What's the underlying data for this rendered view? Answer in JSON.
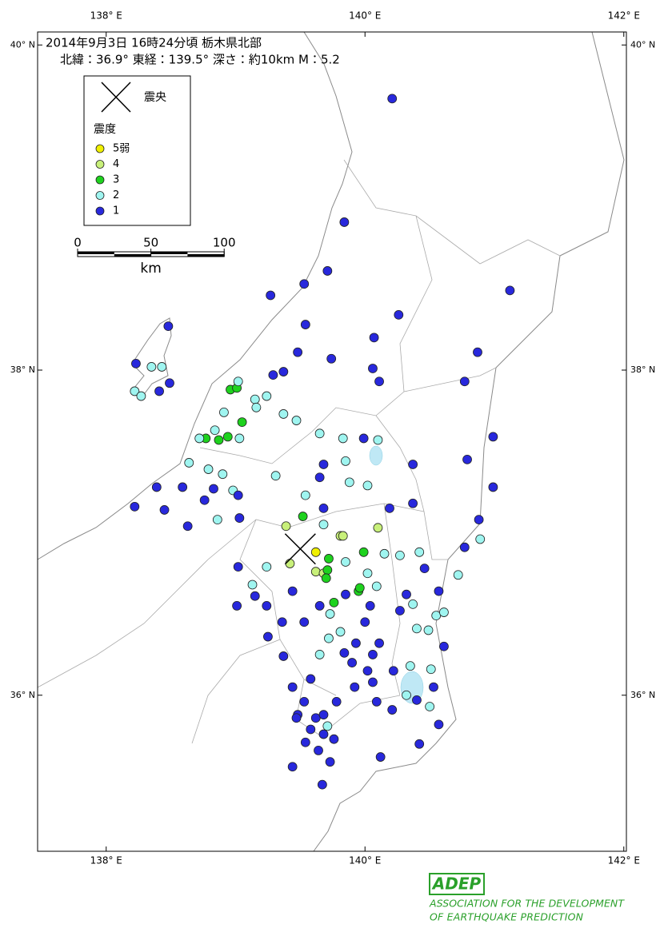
{
  "header": {
    "title": "2014年9月3日 16時24分頃  栃木県北部",
    "info": "北緯：36.9°  東経：139.5°  深さ：約10km  M：5.2"
  },
  "map": {
    "lonlim": [
      137.47,
      142.02
    ],
    "latlim": [
      35.04,
      40.08
    ],
    "lon_ticks": [
      {
        "value": 138,
        "label": "138° E"
      },
      {
        "value": 140,
        "label": "140° E"
      },
      {
        "value": 142,
        "label": "142° E"
      }
    ],
    "lat_ticks": [
      {
        "value": 40,
        "label": "40° N"
      },
      {
        "value": 38,
        "label": "38° N"
      },
      {
        "value": 36,
        "label": "36° N"
      }
    ],
    "epicenter": {
      "lon": 139.5,
      "lat": 36.9,
      "label": "震央"
    },
    "legend_title": "震度",
    "intensities": [
      {
        "label": "5弱",
        "color": "#f0f000"
      },
      {
        "label": "4",
        "color": "#c8f07a"
      },
      {
        "label": "3",
        "color": "#1ed21e"
      },
      {
        "label": "2",
        "color": "#9ff5f0"
      },
      {
        "label": "1",
        "color": "#2828dc"
      }
    ],
    "scale": {
      "ticks": [
        0,
        50,
        100
      ],
      "unit": "km"
    },
    "stations": [
      {
        "intensity": 0,
        "points": [
          [
            139.62,
            36.88
          ]
        ]
      },
      {
        "intensity": 1,
        "points": [
          [
            139.39,
            37.04
          ],
          [
            139.42,
            36.81
          ],
          [
            139.62,
            36.76
          ],
          [
            139.68,
            36.75
          ],
          [
            139.81,
            36.98
          ],
          [
            139.83,
            36.98
          ],
          [
            140.1,
            37.03
          ]
        ]
      },
      {
        "intensity": 2,
        "points": [
          [
            139.72,
            36.84
          ],
          [
            139.71,
            36.77
          ],
          [
            139.7,
            36.72
          ],
          [
            139.52,
            37.1
          ],
          [
            139.99,
            36.88
          ],
          [
            139.95,
            36.64
          ],
          [
            139.76,
            36.57
          ],
          [
            138.96,
            37.88
          ],
          [
            139.01,
            37.89
          ],
          [
            139.05,
            37.68
          ],
          [
            138.77,
            37.58
          ],
          [
            138.87,
            37.57
          ],
          [
            138.94,
            37.59
          ],
          [
            139.96,
            36.66
          ]
        ]
      },
      {
        "intensity": 3,
        "points": [
          [
            138.22,
            37.87
          ],
          [
            138.35,
            38.02
          ],
          [
            138.43,
            38.02
          ],
          [
            138.27,
            37.84
          ],
          [
            138.64,
            37.43
          ],
          [
            138.72,
            37.58
          ],
          [
            138.84,
            37.63
          ],
          [
            138.91,
            37.74
          ],
          [
            139.02,
            37.93
          ],
          [
            139.15,
            37.82
          ],
          [
            139.24,
            37.84
          ],
          [
            139.16,
            37.77
          ],
          [
            139.03,
            37.58
          ],
          [
            138.79,
            37.39
          ],
          [
            138.9,
            37.36
          ],
          [
            138.98,
            37.26
          ],
          [
            138.86,
            37.08
          ],
          [
            139.37,
            37.73
          ],
          [
            139.47,
            37.69
          ],
          [
            139.65,
            37.61
          ],
          [
            139.83,
            37.58
          ],
          [
            139.85,
            37.44
          ],
          [
            140.1,
            37.57
          ],
          [
            140.02,
            37.29
          ],
          [
            139.88,
            37.31
          ],
          [
            139.54,
            37.23
          ],
          [
            139.31,
            37.35
          ],
          [
            139.68,
            37.05
          ],
          [
            139.85,
            36.82
          ],
          [
            140.02,
            36.75
          ],
          [
            140.15,
            36.87
          ],
          [
            140.09,
            36.67
          ],
          [
            139.73,
            36.5
          ],
          [
            139.72,
            36.35
          ],
          [
            139.81,
            36.39
          ],
          [
            140.27,
            36.86
          ],
          [
            140.42,
            36.88
          ],
          [
            140.37,
            36.56
          ],
          [
            140.55,
            36.49
          ],
          [
            140.4,
            36.41
          ],
          [
            140.35,
            36.18
          ],
          [
            140.32,
            36.0
          ],
          [
            140.51,
            36.16
          ],
          [
            140.5,
            35.93
          ],
          [
            140.72,
            36.74
          ],
          [
            140.89,
            36.96
          ],
          [
            139.71,
            35.81
          ],
          [
            139.24,
            36.79
          ],
          [
            139.13,
            36.68
          ],
          [
            139.65,
            36.25
          ],
          [
            140.49,
            36.4
          ],
          [
            140.61,
            36.51
          ]
        ]
      },
      {
        "intensity": 4,
        "points": [
          [
            140.21,
            39.67
          ],
          [
            139.84,
            38.91
          ],
          [
            139.71,
            38.61
          ],
          [
            139.53,
            38.53
          ],
          [
            139.27,
            38.46
          ],
          [
            140.26,
            38.34
          ],
          [
            140.07,
            38.2
          ],
          [
            139.74,
            38.07
          ],
          [
            140.06,
            38.01
          ],
          [
            140.11,
            37.93
          ],
          [
            139.54,
            38.28
          ],
          [
            139.48,
            38.11
          ],
          [
            139.37,
            37.99
          ],
          [
            139.29,
            37.97
          ],
          [
            138.48,
            38.27
          ],
          [
            138.23,
            38.04
          ],
          [
            138.41,
            37.87
          ],
          [
            138.49,
            37.92
          ],
          [
            141.12,
            38.49
          ],
          [
            140.87,
            38.11
          ],
          [
            140.77,
            37.93
          ],
          [
            140.99,
            37.59
          ],
          [
            140.79,
            37.45
          ],
          [
            140.99,
            37.28
          ],
          [
            140.88,
            37.08
          ],
          [
            139.99,
            37.58
          ],
          [
            139.68,
            37.42
          ],
          [
            139.65,
            37.34
          ],
          [
            139.68,
            37.15
          ],
          [
            140.19,
            37.15
          ],
          [
            140.37,
            37.18
          ],
          [
            140.37,
            37.42
          ],
          [
            138.39,
            37.28
          ],
          [
            138.22,
            37.16
          ],
          [
            138.45,
            37.14
          ],
          [
            138.63,
            37.04
          ],
          [
            138.59,
            37.28
          ],
          [
            138.76,
            37.2
          ],
          [
            138.83,
            37.27
          ],
          [
            139.02,
            37.23
          ],
          [
            139.03,
            37.09
          ],
          [
            139.02,
            36.79
          ],
          [
            139.01,
            36.55
          ],
          [
            139.15,
            36.61
          ],
          [
            139.24,
            36.55
          ],
          [
            139.25,
            36.36
          ],
          [
            139.36,
            36.45
          ],
          [
            139.44,
            36.64
          ],
          [
            139.85,
            36.62
          ],
          [
            140.04,
            36.55
          ],
          [
            140.0,
            36.45
          ],
          [
            139.93,
            36.32
          ],
          [
            139.84,
            36.26
          ],
          [
            140.11,
            36.32
          ],
          [
            140.32,
            36.62
          ],
          [
            140.46,
            36.78
          ],
          [
            140.57,
            36.64
          ],
          [
            140.77,
            36.91
          ],
          [
            140.61,
            36.3
          ],
          [
            140.53,
            36.05
          ],
          [
            140.4,
            35.97
          ],
          [
            140.57,
            35.82
          ],
          [
            140.42,
            35.7
          ],
          [
            140.12,
            35.62
          ],
          [
            139.73,
            35.59
          ],
          [
            139.67,
            35.45
          ],
          [
            139.44,
            35.56
          ],
          [
            139.37,
            36.24
          ],
          [
            139.44,
            36.05
          ],
          [
            139.53,
            35.96
          ],
          [
            139.48,
            35.88
          ],
          [
            139.58,
            35.79
          ],
          [
            139.68,
            35.76
          ],
          [
            139.76,
            35.73
          ],
          [
            139.54,
            35.71
          ],
          [
            139.64,
            35.66
          ],
          [
            139.58,
            36.1
          ],
          [
            139.78,
            35.96
          ],
          [
            139.92,
            36.05
          ],
          [
            140.02,
            36.15
          ],
          [
            140.09,
            35.96
          ],
          [
            140.21,
            35.91
          ],
          [
            140.06,
            36.08
          ],
          [
            140.06,
            36.25
          ],
          [
            139.9,
            36.2
          ],
          [
            139.53,
            36.45
          ],
          [
            139.65,
            36.55
          ],
          [
            140.27,
            36.52
          ],
          [
            140.22,
            36.15
          ],
          [
            139.47,
            35.86
          ],
          [
            139.62,
            35.86
          ],
          [
            139.68,
            35.88
          ]
        ]
      }
    ]
  },
  "footer": {
    "logo": "ADEP",
    "org_line1": "ASSOCIATION FOR THE DEVELOPMENT",
    "org_line2": "OF EARTHQUAKE PREDICTION"
  }
}
